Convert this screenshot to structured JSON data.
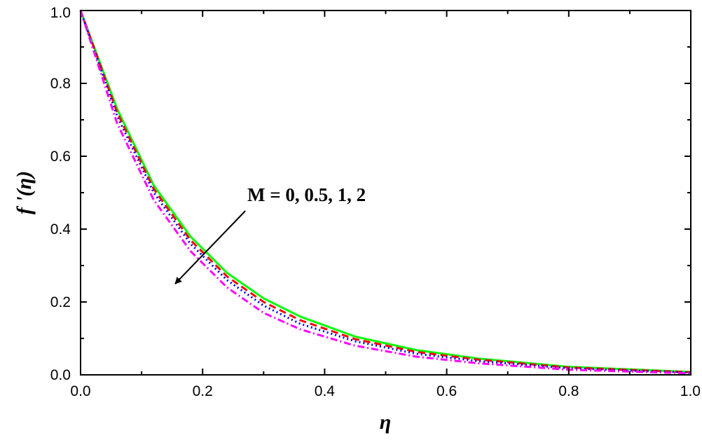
{
  "chart_data": {
    "type": "line",
    "xlabel": "η",
    "ylabel": "f '(η)",
    "xlim": [
      0.0,
      1.0
    ],
    "ylim": [
      0.0,
      1.0
    ],
    "x_ticks": [
      "0.0",
      "0.2",
      "0.4",
      "0.6",
      "0.8",
      "1.0"
    ],
    "y_ticks": [
      "0.0",
      "0.2",
      "0.4",
      "0.6",
      "0.8",
      "1.0"
    ],
    "grid": false,
    "annotation": {
      "text": "M = 0, 0.5, 1, 2",
      "arrow_from": [
        0.27,
        0.45
      ],
      "arrow_to": [
        0.155,
        0.25
      ]
    },
    "x": [
      0.0,
      0.06,
      0.12,
      0.18,
      0.24,
      0.3,
      0.36,
      0.45,
      0.55,
      0.65,
      0.8,
      1.0
    ],
    "series": [
      {
        "color": "#00ff00",
        "dash": "solid",
        "values": [
          1.0,
          0.73,
          0.52,
          0.38,
          0.28,
          0.21,
          0.16,
          0.105,
          0.068,
          0.045,
          0.022,
          0.008
        ]
      },
      {
        "color": "#ff0000",
        "dash": "dash",
        "values": [
          1.0,
          0.72,
          0.51,
          0.37,
          0.27,
          0.2,
          0.15,
          0.098,
          0.063,
          0.042,
          0.02,
          0.007
        ]
      },
      {
        "color": "#0000ff",
        "dash": "dot",
        "values": [
          1.0,
          0.71,
          0.5,
          0.36,
          0.26,
          0.19,
          0.14,
          0.092,
          0.058,
          0.038,
          0.018,
          0.006
        ]
      },
      {
        "color": "#ff00ff",
        "dash": "dashdot",
        "values": [
          1.0,
          0.69,
          0.48,
          0.34,
          0.24,
          0.17,
          0.125,
          0.08,
          0.05,
          0.032,
          0.014,
          0.004
        ]
      }
    ]
  }
}
